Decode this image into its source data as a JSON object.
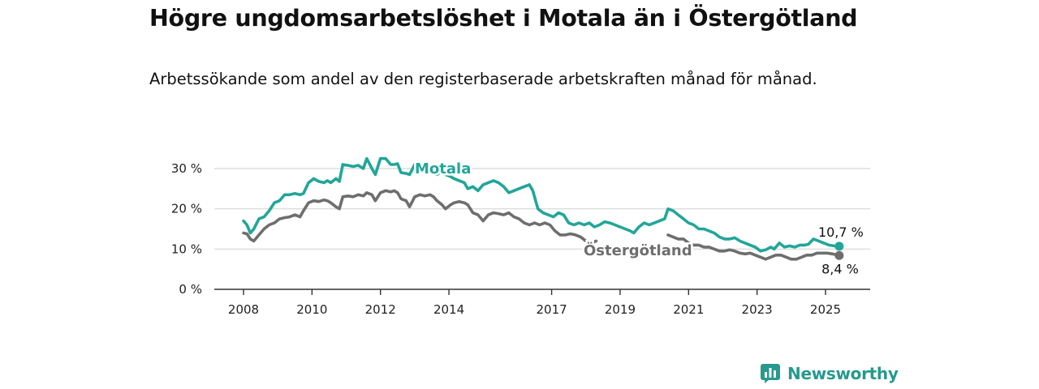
{
  "title": "Högre ungdomsarbetslöshet i Motala än i Östergötland",
  "subtitle": "Arbetssökande som andel av den registerbaserade arbetskraften månad för månad.",
  "brand": {
    "name": "Newsworthy",
    "icon": "newsworthy-logo-icon",
    "color": "#27998e"
  },
  "chart_data": {
    "type": "line",
    "x_unit": "year",
    "xlim": [
      2007.0,
      2026.3
    ],
    "ylim": [
      0,
      32
    ],
    "yticks": [
      0,
      10,
      20,
      30
    ],
    "ytick_labels": [
      "0 %",
      "10 %",
      "20 %",
      "30 %"
    ],
    "xticks": [
      2008,
      2010,
      2012,
      2014,
      2017,
      2019,
      2021,
      2023,
      2025
    ],
    "xtick_labels": [
      "2008",
      "2010",
      "2012",
      "2014",
      "2017",
      "2019",
      "2021",
      "2023",
      "2025"
    ],
    "grid": true,
    "series": [
      {
        "name": "Motala",
        "color": "#22a699",
        "end_label": "10,7 %",
        "points": [
          [
            2008.0,
            17.0
          ],
          [
            2008.1,
            16.0
          ],
          [
            2008.2,
            14.0
          ],
          [
            2008.3,
            15.0
          ],
          [
            2008.45,
            17.5
          ],
          [
            2008.6,
            18.0
          ],
          [
            2008.75,
            19.5
          ],
          [
            2008.9,
            21.5
          ],
          [
            2009.05,
            22.0
          ],
          [
            2009.2,
            23.5
          ],
          [
            2009.35,
            23.5
          ],
          [
            2009.5,
            23.8
          ],
          [
            2009.65,
            23.5
          ],
          [
            2009.75,
            23.8
          ],
          [
            2009.9,
            26.5
          ],
          [
            2010.05,
            27.5
          ],
          [
            2010.2,
            26.8
          ],
          [
            2010.35,
            26.5
          ],
          [
            2010.45,
            27.0
          ],
          [
            2010.55,
            26.5
          ],
          [
            2010.7,
            27.5
          ],
          [
            2010.8,
            26.8
          ],
          [
            2010.9,
            31.0
          ],
          [
            2011.05,
            30.8
          ],
          [
            2011.2,
            30.5
          ],
          [
            2011.35,
            30.8
          ],
          [
            2011.5,
            30.0
          ],
          [
            2011.6,
            32.5
          ],
          [
            2011.75,
            30.0
          ],
          [
            2011.85,
            28.5
          ],
          [
            2012.0,
            32.5
          ],
          [
            2012.15,
            32.5
          ],
          [
            2012.3,
            31.0
          ],
          [
            2012.4,
            31.0
          ],
          [
            2012.5,
            31.2
          ],
          [
            2012.6,
            29.0
          ],
          [
            2012.75,
            28.8
          ],
          [
            2012.85,
            28.5
          ],
          [
            2013.0,
            31.0
          ],
          [
            2013.15,
            29.8
          ],
          [
            2013.3,
            30.2
          ],
          [
            2013.45,
            30.5
          ],
          [
            2013.55,
            30.3
          ],
          [
            2013.65,
            28.5
          ],
          [
            2013.8,
            29.5
          ],
          [
            2013.9,
            28.5
          ],
          [
            2014.05,
            28.0
          ],
          [
            2014.15,
            27.5
          ],
          [
            2014.3,
            27.0
          ],
          [
            2014.45,
            26.5
          ],
          [
            2014.55,
            25.0
          ],
          [
            2014.7,
            25.5
          ],
          [
            2014.85,
            24.5
          ],
          [
            2015.0,
            26.0
          ],
          [
            2015.15,
            26.5
          ],
          [
            2015.3,
            27.0
          ],
          [
            2015.45,
            26.5
          ],
          [
            2015.6,
            25.5
          ],
          [
            2015.75,
            24.0
          ],
          [
            2015.9,
            24.5
          ],
          [
            2016.05,
            25.0
          ],
          [
            2016.2,
            25.5
          ],
          [
            2016.35,
            26.0
          ],
          [
            2016.45,
            24.5
          ],
          [
            2016.6,
            20.0
          ],
          [
            2016.75,
            19.0
          ],
          [
            2016.9,
            18.5
          ],
          [
            2017.05,
            18.0
          ],
          [
            2017.2,
            19.0
          ],
          [
            2017.35,
            18.5
          ],
          [
            2017.5,
            16.5
          ],
          [
            2017.65,
            16.0
          ],
          [
            2017.8,
            16.5
          ],
          [
            2017.95,
            16.0
          ],
          [
            2018.1,
            16.5
          ],
          [
            2018.25,
            15.5
          ],
          [
            2018.4,
            16.0
          ],
          [
            2018.55,
            16.8
          ],
          [
            2018.7,
            16.5
          ],
          [
            2018.85,
            16.0
          ],
          [
            2019.0,
            15.5
          ],
          [
            2019.15,
            15.0
          ],
          [
            2019.3,
            14.5
          ],
          [
            2019.4,
            14.0
          ],
          [
            2019.55,
            15.5
          ],
          [
            2019.7,
            16.5
          ],
          [
            2019.85,
            16.0
          ],
          [
            2020.0,
            16.5
          ],
          [
            2020.15,
            17.0
          ],
          [
            2020.3,
            17.5
          ],
          [
            2020.4,
            20.0
          ],
          [
            2020.55,
            19.5
          ],
          [
            2020.7,
            18.5
          ],
          [
            2020.85,
            17.5
          ],
          [
            2021.0,
            16.5
          ],
          [
            2021.15,
            16.0
          ],
          [
            2021.3,
            15.0
          ],
          [
            2021.45,
            15.0
          ],
          [
            2021.6,
            14.5
          ],
          [
            2021.75,
            14.0
          ],
          [
            2021.9,
            13.0
          ],
          [
            2022.05,
            12.5
          ],
          [
            2022.2,
            12.5
          ],
          [
            2022.35,
            12.8
          ],
          [
            2022.5,
            12.0
          ],
          [
            2022.65,
            11.5
          ],
          [
            2022.8,
            11.0
          ],
          [
            2022.95,
            10.5
          ],
          [
            2023.1,
            9.5
          ],
          [
            2023.25,
            9.8
          ],
          [
            2023.4,
            10.5
          ],
          [
            2023.5,
            10.0
          ],
          [
            2023.65,
            11.5
          ],
          [
            2023.8,
            10.5
          ],
          [
            2023.95,
            10.8
          ],
          [
            2024.1,
            10.5
          ],
          [
            2024.25,
            11.0
          ],
          [
            2024.4,
            11.0
          ],
          [
            2024.5,
            11.2
          ],
          [
            2024.65,
            12.5
          ],
          [
            2024.8,
            12.0
          ],
          [
            2024.95,
            11.5
          ],
          [
            2025.1,
            11.0
          ],
          [
            2025.25,
            10.8
          ],
          [
            2025.4,
            10.7
          ]
        ]
      },
      {
        "name": "Östergötland",
        "color": "#6e6e6e",
        "end_label": "8,4 %",
        "points": [
          [
            2008.0,
            14.0
          ],
          [
            2008.1,
            13.8
          ],
          [
            2008.2,
            12.5
          ],
          [
            2008.3,
            12.0
          ],
          [
            2008.45,
            13.5
          ],
          [
            2008.6,
            15.0
          ],
          [
            2008.75,
            16.0
          ],
          [
            2008.9,
            16.5
          ],
          [
            2009.05,
            17.5
          ],
          [
            2009.2,
            17.8
          ],
          [
            2009.35,
            18.0
          ],
          [
            2009.5,
            18.5
          ],
          [
            2009.65,
            18.0
          ],
          [
            2009.75,
            19.5
          ],
          [
            2009.9,
            21.5
          ],
          [
            2010.05,
            22.0
          ],
          [
            2010.2,
            21.8
          ],
          [
            2010.35,
            22.2
          ],
          [
            2010.45,
            22.0
          ],
          [
            2010.55,
            21.5
          ],
          [
            2010.7,
            20.5
          ],
          [
            2010.8,
            20.0
          ],
          [
            2010.9,
            23.0
          ],
          [
            2011.05,
            23.2
          ],
          [
            2011.2,
            23.0
          ],
          [
            2011.35,
            23.5
          ],
          [
            2011.5,
            23.2
          ],
          [
            2011.6,
            24.0
          ],
          [
            2011.75,
            23.5
          ],
          [
            2011.85,
            22.0
          ],
          [
            2012.0,
            24.0
          ],
          [
            2012.15,
            24.5
          ],
          [
            2012.3,
            24.2
          ],
          [
            2012.4,
            24.5
          ],
          [
            2012.5,
            24.0
          ],
          [
            2012.6,
            22.5
          ],
          [
            2012.75,
            22.0
          ],
          [
            2012.85,
            20.5
          ],
          [
            2013.0,
            23.0
          ],
          [
            2013.15,
            23.5
          ],
          [
            2013.3,
            23.2
          ],
          [
            2013.45,
            23.5
          ],
          [
            2013.55,
            23.0
          ],
          [
            2013.65,
            22.0
          ],
          [
            2013.8,
            21.0
          ],
          [
            2013.9,
            20.0
          ],
          [
            2014.05,
            21.0
          ],
          [
            2014.15,
            21.5
          ],
          [
            2014.3,
            21.8
          ],
          [
            2014.45,
            21.5
          ],
          [
            2014.55,
            21.0
          ],
          [
            2014.7,
            19.0
          ],
          [
            2014.85,
            18.5
          ],
          [
            2015.0,
            17.0
          ],
          [
            2015.15,
            18.5
          ],
          [
            2015.3,
            19.0
          ],
          [
            2015.45,
            18.8
          ],
          [
            2015.6,
            18.5
          ],
          [
            2015.75,
            19.0
          ],
          [
            2015.9,
            18.0
          ],
          [
            2016.05,
            17.5
          ],
          [
            2016.2,
            16.5
          ],
          [
            2016.35,
            16.0
          ],
          [
            2016.5,
            16.5
          ],
          [
            2016.65,
            16.0
          ],
          [
            2016.8,
            16.5
          ],
          [
            2016.95,
            16.0
          ],
          [
            2017.1,
            14.5
          ],
          [
            2017.25,
            13.5
          ],
          [
            2017.4,
            13.5
          ],
          [
            2017.55,
            13.8
          ],
          [
            2017.7,
            13.5
          ],
          [
            2017.85,
            13.0
          ],
          [
            2018.0,
            12.0
          ],
          [
            2018.15,
            11.5
          ],
          [
            2018.3,
            12.0
          ],
          [
            2020.4,
            13.5
          ],
          [
            2020.55,
            13.0
          ],
          [
            2020.7,
            12.5
          ],
          [
            2020.85,
            12.5
          ],
          [
            2021.0,
            11.5
          ],
          [
            2021.15,
            11.0
          ],
          [
            2021.3,
            11.0
          ],
          [
            2021.45,
            10.5
          ],
          [
            2021.6,
            10.5
          ],
          [
            2021.75,
            10.0
          ],
          [
            2021.9,
            9.5
          ],
          [
            2022.05,
            9.5
          ],
          [
            2022.2,
            9.8
          ],
          [
            2022.35,
            9.5
          ],
          [
            2022.5,
            9.0
          ],
          [
            2022.65,
            8.8
          ],
          [
            2022.8,
            9.0
          ],
          [
            2022.95,
            8.5
          ],
          [
            2023.1,
            8.0
          ],
          [
            2023.25,
            7.5
          ],
          [
            2023.4,
            8.0
          ],
          [
            2023.55,
            8.5
          ],
          [
            2023.7,
            8.5
          ],
          [
            2023.85,
            8.0
          ],
          [
            2024.0,
            7.5
          ],
          [
            2024.15,
            7.5
          ],
          [
            2024.3,
            8.0
          ],
          [
            2024.45,
            8.5
          ],
          [
            2024.6,
            8.5
          ],
          [
            2024.75,
            9.0
          ],
          [
            2024.9,
            9.0
          ],
          [
            2025.05,
            9.0
          ],
          [
            2025.2,
            8.8
          ],
          [
            2025.3,
            8.6
          ],
          [
            2025.4,
            8.4
          ]
        ]
      }
    ]
  }
}
